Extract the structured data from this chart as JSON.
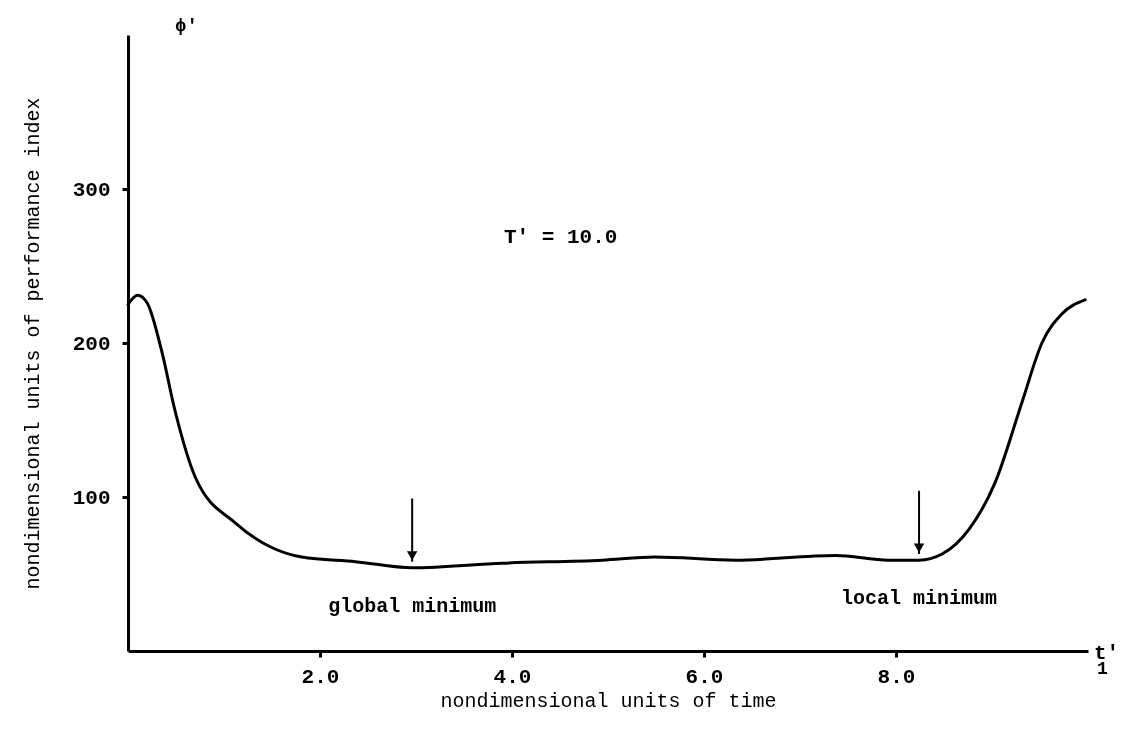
{
  "chart_data": {
    "type": "line",
    "xlabel": "nondimensional units of time",
    "ylabel": "nondimensional units of performance index",
    "x": [
      0.0,
      0.1,
      0.2,
      0.35,
      0.49,
      0.7,
      1.12,
      1.47,
      1.81,
      2.37,
      2.96,
      3.9,
      4.94,
      5.49,
      6.33,
      7.37,
      7.92,
      8.24,
      8.48,
      8.76,
      9.03,
      9.31,
      9.52,
      9.73,
      9.97
    ],
    "series": [
      {
        "color": "#000000",
        "values": [
          225,
          231,
          226,
          195,
          156,
          113,
          83,
          68,
          61,
          58,
          54,
          57,
          59,
          61,
          59,
          62,
          59,
          59,
          63,
          79,
          109,
          161,
          200,
          219,
          228
        ]
      }
    ],
    "xlim": [
      0,
      10
    ],
    "ylim": [
      0,
      400
    ],
    "xticks": [
      {
        "value": 2,
        "label": "2.0"
      },
      {
        "value": 4,
        "label": "4.0"
      },
      {
        "value": 6,
        "label": "6.0"
      },
      {
        "value": 8,
        "label": "8.0"
      }
    ],
    "yticks": [
      100,
      200,
      300
    ],
    "annotations": [
      "ϕ'",
      "t'$_{1}$",
      "T' = 10.0",
      {
        "text": "global minimum",
        "x": 2.96,
        "y": 54
      },
      {
        "text": "local minimum",
        "x": 8.24,
        "y": 59
      }
    ],
    "grid": false,
    "marker": "none",
    "line_style": "solid"
  }
}
